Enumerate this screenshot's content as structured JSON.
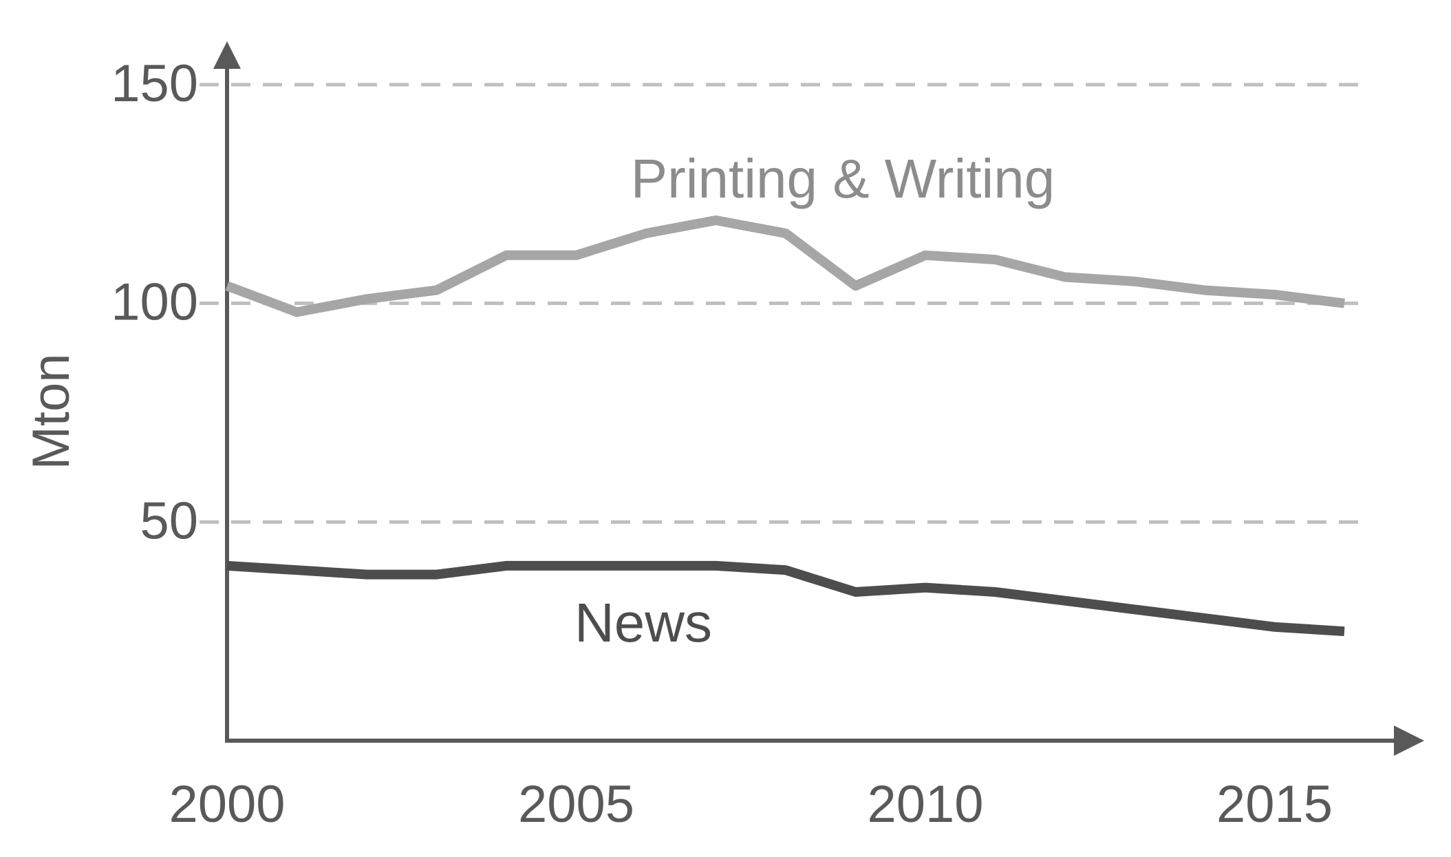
{
  "colors": {
    "axis": "#595959",
    "grid": "#bfbfbf",
    "text": "#595959",
    "printing_writing": "#a6a6a6",
    "news": "#4d4d4d",
    "printing_label": "#8c8c8c"
  },
  "chart_data": {
    "type": "line",
    "title": "",
    "xlabel": "",
    "ylabel": "Mton",
    "xlim": [
      2000,
      2016
    ],
    "ylim": [
      0,
      150
    ],
    "grid": "horizontal dashed",
    "x_ticks": [
      2000,
      2005,
      2010,
      2015
    ],
    "x_tick_labels": [
      "2000",
      "2005",
      "2010",
      "2015"
    ],
    "y_ticks": [
      50,
      100,
      150
    ],
    "y_tick_labels": [
      "50",
      "100",
      "150"
    ],
    "series": [
      {
        "name": "Printing & Writing",
        "key": "printing_writing",
        "x": [
          2000,
          2001,
          2002,
          2003,
          2004,
          2005,
          2006,
          2007,
          2008,
          2009,
          2010,
          2011,
          2012,
          2013,
          2014,
          2015,
          2016
        ],
        "values": [
          104,
          98,
          101,
          103,
          111,
          111,
          116,
          119,
          116,
          104,
          111,
          110,
          106,
          105,
          103,
          102,
          100
        ]
      },
      {
        "name": "News",
        "key": "news",
        "x": [
          2000,
          2001,
          2002,
          2003,
          2004,
          2005,
          2006,
          2007,
          2008,
          2009,
          2010,
          2011,
          2012,
          2013,
          2014,
          2015,
          2016
        ],
        "values": [
          40,
          39,
          38,
          38,
          40,
          40,
          40,
          40,
          39,
          34,
          35,
          34,
          32,
          30,
          28,
          26,
          25
        ]
      }
    ],
    "annotations": [
      {
        "text": "Printing & Writing",
        "series": "printing_writing"
      },
      {
        "text": "News",
        "series": "news"
      }
    ]
  }
}
